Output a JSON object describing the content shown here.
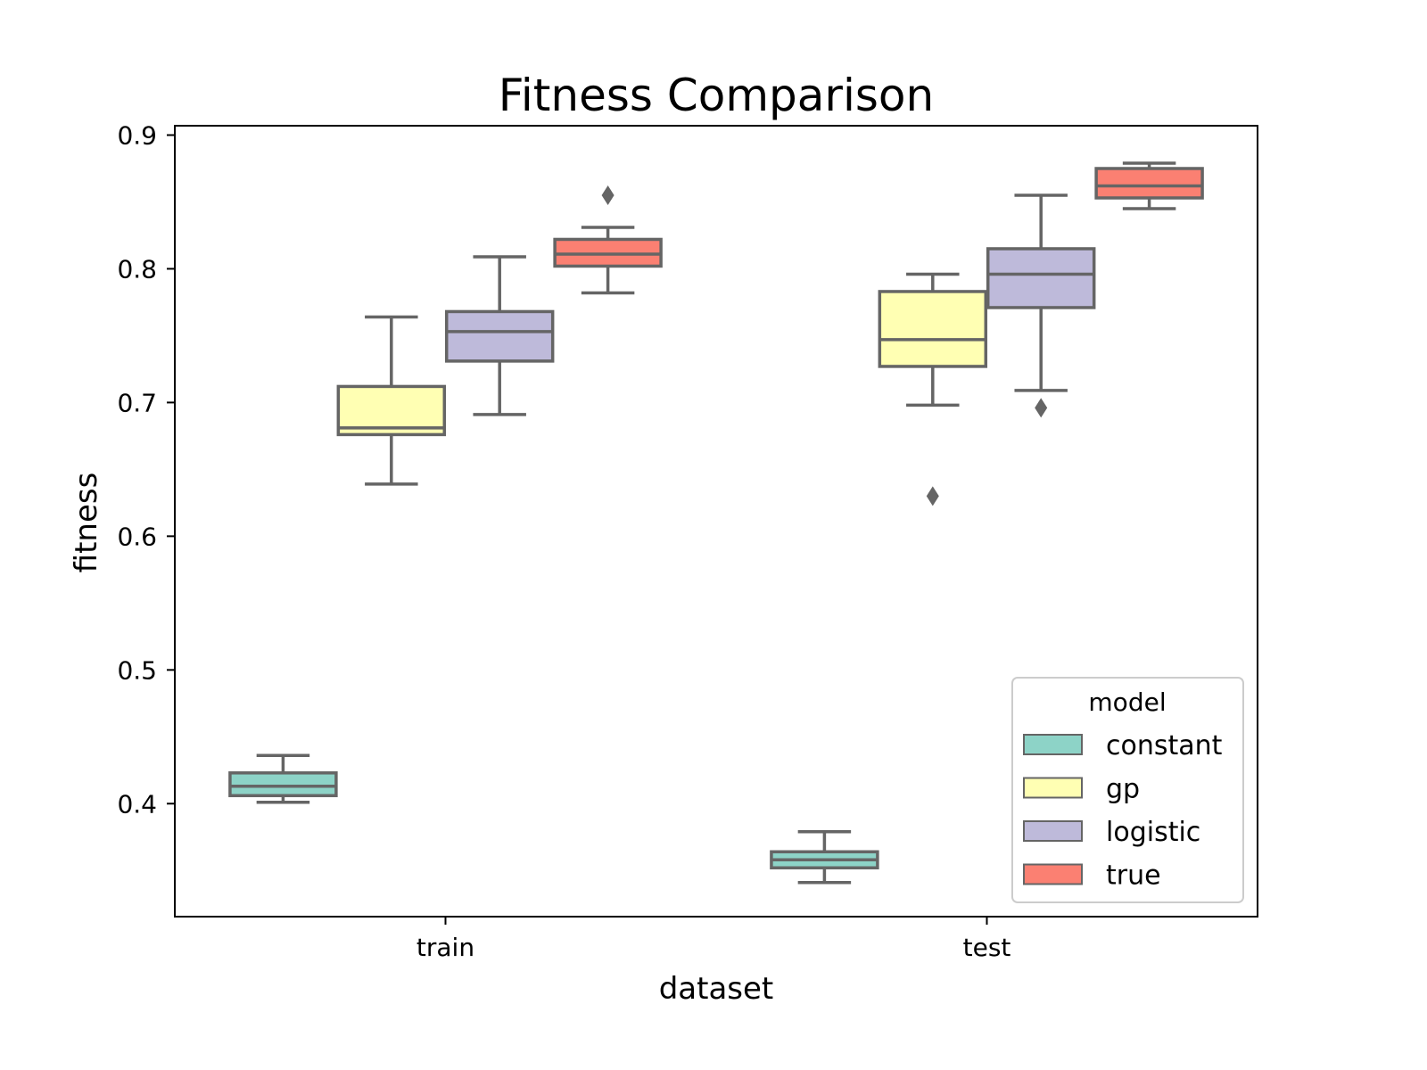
{
  "chart_data": {
    "type": "box",
    "title": "Fitness Comparison",
    "xlabel": "dataset",
    "ylabel": "fitness",
    "categories": [
      "train",
      "test"
    ],
    "ylim": [
      0.3155,
      0.907
    ],
    "yticks": [
      0.4,
      0.5,
      0.6,
      0.7,
      0.8,
      0.9
    ],
    "ytick_labels": [
      "0.4",
      "0.5",
      "0.6",
      "0.7",
      "0.8",
      "0.9"
    ],
    "legend": {
      "title": "model",
      "position": "lower right"
    },
    "grid": false,
    "series": [
      {
        "name": "constant",
        "color": "#8dd3c7",
        "boxes": [
          {
            "category": "train",
            "whisker_low": 0.401,
            "q1": 0.406,
            "median": 0.413,
            "q3": 0.423,
            "whisker_high": 0.436,
            "outliers": []
          },
          {
            "category": "test",
            "whisker_low": 0.341,
            "q1": 0.352,
            "median": 0.358,
            "q3": 0.364,
            "whisker_high": 0.379,
            "outliers": []
          }
        ]
      },
      {
        "name": "gp",
        "color": "#ffffb3",
        "boxes": [
          {
            "category": "train",
            "whisker_low": 0.639,
            "q1": 0.676,
            "median": 0.681,
            "q3": 0.712,
            "whisker_high": 0.764,
            "outliers": []
          },
          {
            "category": "test",
            "whisker_low": 0.698,
            "q1": 0.727,
            "median": 0.747,
            "q3": 0.783,
            "whisker_high": 0.796,
            "outliers": [
              0.63
            ]
          }
        ]
      },
      {
        "name": "logistic",
        "color": "#bebada",
        "boxes": [
          {
            "category": "train",
            "whisker_low": 0.691,
            "q1": 0.731,
            "median": 0.753,
            "q3": 0.768,
            "whisker_high": 0.809,
            "outliers": []
          },
          {
            "category": "test",
            "whisker_low": 0.709,
            "q1": 0.771,
            "median": 0.796,
            "q3": 0.815,
            "whisker_high": 0.855,
            "outliers": [
              0.696
            ]
          }
        ]
      },
      {
        "name": "true",
        "color": "#fb8072",
        "boxes": [
          {
            "category": "train",
            "whisker_low": 0.782,
            "q1": 0.802,
            "median": 0.811,
            "q3": 0.822,
            "whisker_high": 0.831,
            "outliers": [
              0.855
            ]
          },
          {
            "category": "test",
            "whisker_low": 0.845,
            "q1": 0.853,
            "median": 0.862,
            "q3": 0.875,
            "whisker_high": 0.879,
            "outliers": []
          }
        ]
      }
    ]
  },
  "style": {
    "line_color": "#656565",
    "axis_color": "#000000",
    "legend_border": "#cccccc"
  }
}
